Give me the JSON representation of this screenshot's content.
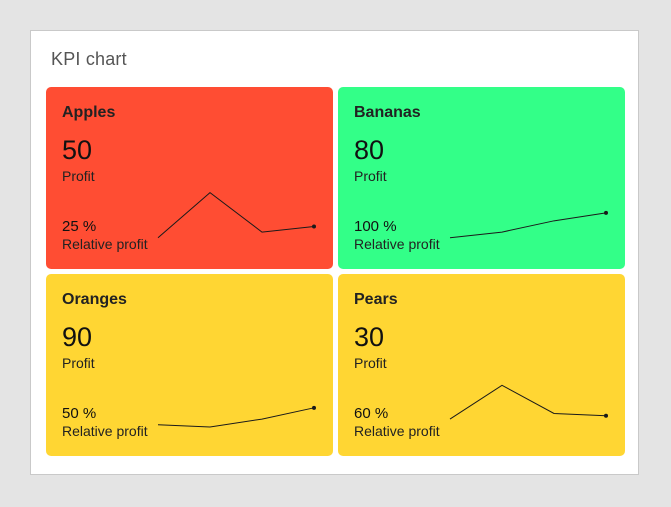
{
  "title": "KPI chart",
  "colors": {
    "red": "#ff4d33",
    "green": "#33ff88",
    "yellow": "#ffd633"
  },
  "chart_data": {
    "type": "line",
    "title": "KPI chart",
    "cards": [
      {
        "name": "Apples",
        "value": "50",
        "value_label": "Profit",
        "relative_value": "25 %",
        "relative_label": "Relative profit",
        "color": "#ff4d33",
        "sparkline": [
          10,
          50,
          15,
          20
        ]
      },
      {
        "name": "Bananas",
        "value": "80",
        "value_label": "Profit",
        "relative_value": "100 %",
        "relative_label": "Relative profit",
        "color": "#33ff88",
        "sparkline": [
          10,
          15,
          25,
          32
        ]
      },
      {
        "name": "Oranges",
        "value": "90",
        "value_label": "Profit",
        "relative_value": "50 %",
        "relative_label": "Relative profit",
        "color": "#ffd633",
        "sparkline": [
          10,
          8,
          15,
          25
        ]
      },
      {
        "name": "Pears",
        "value": "30",
        "value_label": "Profit",
        "relative_value": "60 %",
        "relative_label": "Relative profit",
        "color": "#ffd633",
        "sparkline": [
          15,
          45,
          20,
          18
        ]
      }
    ]
  }
}
